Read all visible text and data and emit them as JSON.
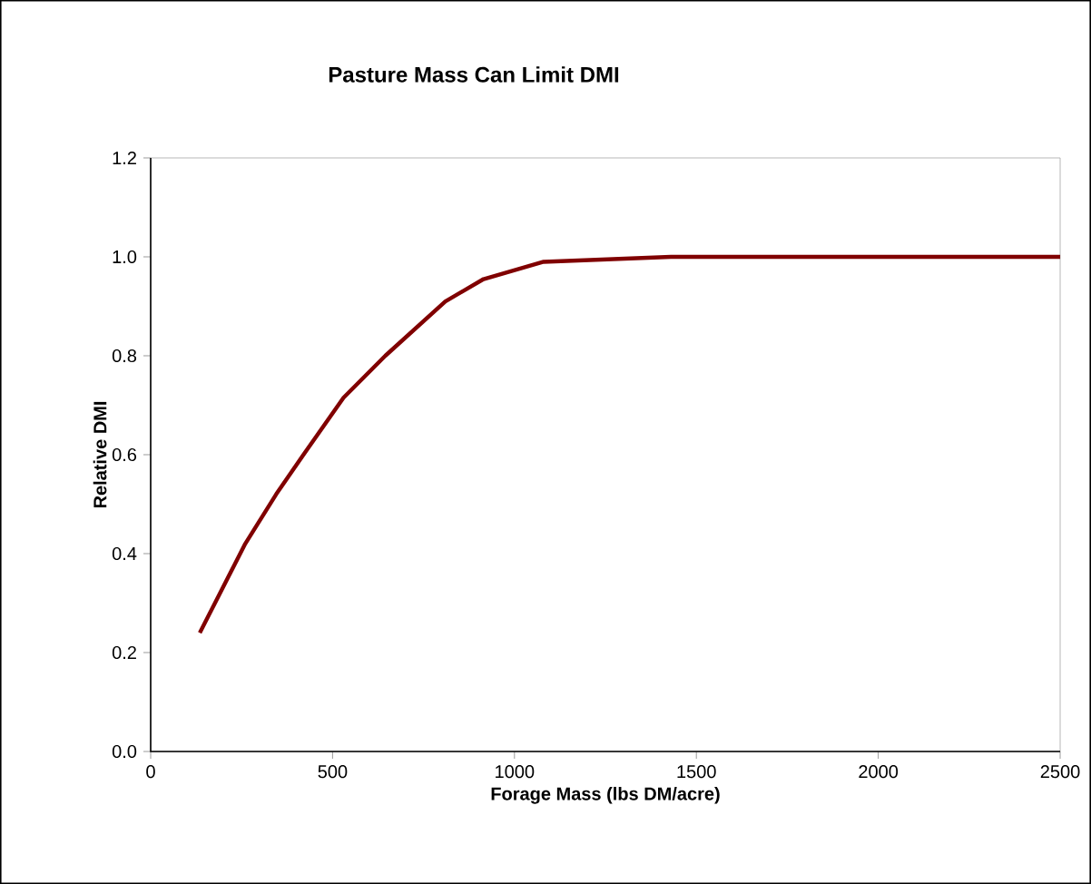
{
  "chart_data": {
    "type": "line",
    "title": "Pasture Mass Can Limit DMI",
    "xlabel": "Forage Mass (lbs DM/acre)",
    "ylabel": "Relative DMI",
    "x": [
      135,
      260,
      345,
      420,
      530,
      645,
      810,
      915,
      1080,
      1430,
      2500
    ],
    "series": [
      {
        "color": "#800000",
        "values": [
          0.24,
          0.42,
          0.52,
          0.6,
          0.715,
          0.8,
          0.91,
          0.955,
          0.99,
          1.0,
          1.0
        ]
      }
    ],
    "xlim": [
      0,
      2500
    ],
    "ylim": [
      0,
      1.2
    ],
    "xticks": [
      0,
      500,
      1000,
      1500,
      2000,
      2500
    ],
    "yticks": [
      {
        "value": 0,
        "label": "0.0"
      },
      {
        "value": 0.2,
        "label": "0.2"
      },
      {
        "value": 0.4,
        "label": "0.4"
      },
      {
        "value": 0.6,
        "label": "0.6"
      },
      {
        "value": 0.8,
        "label": "0.8"
      },
      {
        "value": 1.0,
        "label": "1.0"
      },
      {
        "value": 1.2,
        "label": "1.2"
      }
    ],
    "grid": false,
    "marker": "none",
    "line_style": "solid"
  }
}
